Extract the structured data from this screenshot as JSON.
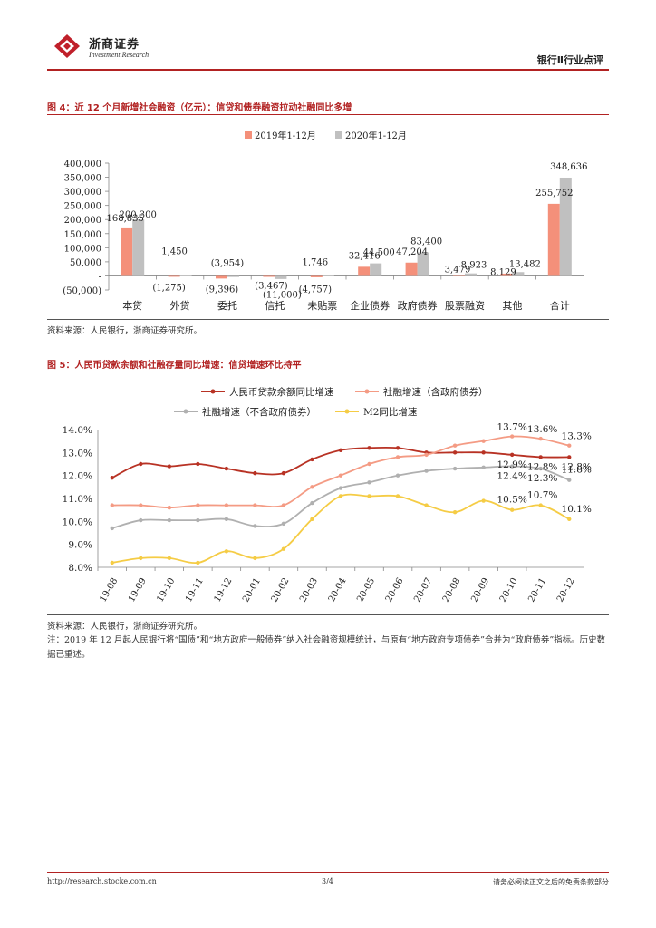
{
  "header": {
    "logo_cn": "浙商证券",
    "logo_en": "Investment Research",
    "section": "银行Ⅱ行业点评",
    "brand_color": "#c0202a"
  },
  "figure4": {
    "title": "图 4：近 12 个月新增社会融资（亿元）：信贷和债券融资拉动社融同比多增",
    "source": "资料来源：人民银行，浙商证券研究所。"
  },
  "figure5": {
    "title": "图 5：人民币贷款余额和社融存量同比增速：信贷增速环比持平",
    "source": "资料来源：人民银行，浙商证券研究所。",
    "note": "注：2019 年 12 月起人民银行将“国债”和“地方政府一般债券”纳入社会融资规模统计，与原有“地方政府专项债券”合并为“政府债券”指标。历史数据已重述。"
  },
  "footer": {
    "url": "http://research.stocke.com.cn",
    "page": "3/4",
    "disclaimer": "请务必阅读正文之后的免责条款部分"
  },
  "chart_data": [
    {
      "type": "bar",
      "categories": [
        "本贷",
        "外贷",
        "委托",
        "信托",
        "未贴票",
        "企业债券",
        "政府债券",
        "股票融资",
        "其他",
        "合计"
      ],
      "series": [
        {
          "name": "2019年1-12月",
          "color": "#f4907a",
          "values": [
            168835,
            -1275,
            -9396,
            -3467,
            -4757,
            32416,
            47204,
            3479,
            8129,
            255752
          ],
          "labels": [
            "168,835",
            "(1,275)",
            "(9,396)",
            "(3,467)",
            "(4,757)",
            "32,416",
            "47,204",
            "3,479",
            "8,129",
            "255,752"
          ]
        },
        {
          "name": "2020年1-12月",
          "color": "#c0c0c0",
          "values": [
            200300,
            1450,
            -3954,
            -11000,
            1746,
            44500,
            83400,
            8923,
            13482,
            348636
          ],
          "labels": [
            "200,300",
            "1,450",
            "(3,954)",
            "(11,000)",
            "1,746",
            "44,500",
            "83,400",
            "8,923",
            "13,482",
            "348,636"
          ]
        }
      ],
      "ylim": [
        -50000,
        400000
      ],
      "yticks": [
        -50000,
        0,
        50000,
        100000,
        150000,
        200000,
        250000,
        300000,
        350000,
        400000
      ],
      "ytick_labels": [
        "(50,000)",
        "-",
        "50,000",
        "100,000",
        "150,000",
        "200,000",
        "250,000",
        "300,000",
        "350,000",
        "400,000"
      ],
      "legend": "top-center"
    },
    {
      "type": "line",
      "x": [
        "19-08",
        "19-09",
        "19-10",
        "19-11",
        "19-12",
        "20-01",
        "20-02",
        "20-03",
        "20-04",
        "20-05",
        "20-06",
        "20-07",
        "20-08",
        "20-09",
        "20-10",
        "20-11",
        "20-12"
      ],
      "series": [
        {
          "name": "人民币贷款余额同比增速",
          "color": "#b83224",
          "values": [
            11.9,
            12.5,
            12.4,
            12.5,
            12.3,
            12.1,
            12.1,
            12.7,
            13.1,
            13.2,
            13.2,
            13.0,
            13.0,
            13.0,
            12.9,
            12.8,
            12.8
          ]
        },
        {
          "name": "社融增速（含政府债券）",
          "color": "#f49b84",
          "values": [
            10.7,
            10.7,
            10.6,
            10.7,
            10.7,
            10.7,
            10.7,
            11.5,
            12.0,
            12.5,
            12.8,
            12.9,
            13.3,
            13.5,
            13.7,
            13.6,
            13.3
          ]
        },
        {
          "name": "社融增速（不含政府债券）",
          "color": "#b0b0b0",
          "values": [
            9.7,
            10.05,
            10.05,
            10.05,
            10.1,
            9.8,
            9.9,
            10.8,
            11.45,
            11.7,
            12.0,
            12.2,
            12.3,
            12.35,
            12.4,
            12.3,
            11.8
          ]
        },
        {
          "name": "M2同比增速",
          "color": "#f5cc45",
          "values": [
            8.2,
            8.4,
            8.4,
            8.2,
            8.7,
            8.4,
            8.8,
            10.1,
            11.1,
            11.1,
            11.1,
            10.7,
            10.4,
            10.9,
            10.5,
            10.7,
            10.1
          ]
        }
      ],
      "annotations": [
        {
          "series": 1,
          "index": 14,
          "text": "13.7%"
        },
        {
          "series": 1,
          "index": 15,
          "text": "13.6%"
        },
        {
          "series": 1,
          "index": 16,
          "text": "13.3%"
        },
        {
          "series": 0,
          "index": 14,
          "text": "12.9%"
        },
        {
          "series": 0,
          "index": 15,
          "text": "12.8%"
        },
        {
          "series": 0,
          "index": 16,
          "text": "12.8%"
        },
        {
          "series": 2,
          "index": 14,
          "text": "12.4%"
        },
        {
          "series": 2,
          "index": 15,
          "text": "12.3%"
        },
        {
          "series": 2,
          "index": 16,
          "text": "11.8%"
        },
        {
          "series": 3,
          "index": 14,
          "text": "10.5%"
        },
        {
          "series": 3,
          "index": 15,
          "text": "10.7%"
        },
        {
          "series": 3,
          "index": 16,
          "text": "10.1%"
        }
      ],
      "ylim": [
        8.0,
        14.0
      ],
      "yticks": [
        8.0,
        9.0,
        10.0,
        11.0,
        12.0,
        13.0,
        14.0
      ],
      "ytick_labels": [
        "8.0%",
        "9.0%",
        "10.0%",
        "11.0%",
        "12.0%",
        "13.0%",
        "14.0%"
      ],
      "legend": "top"
    }
  ]
}
